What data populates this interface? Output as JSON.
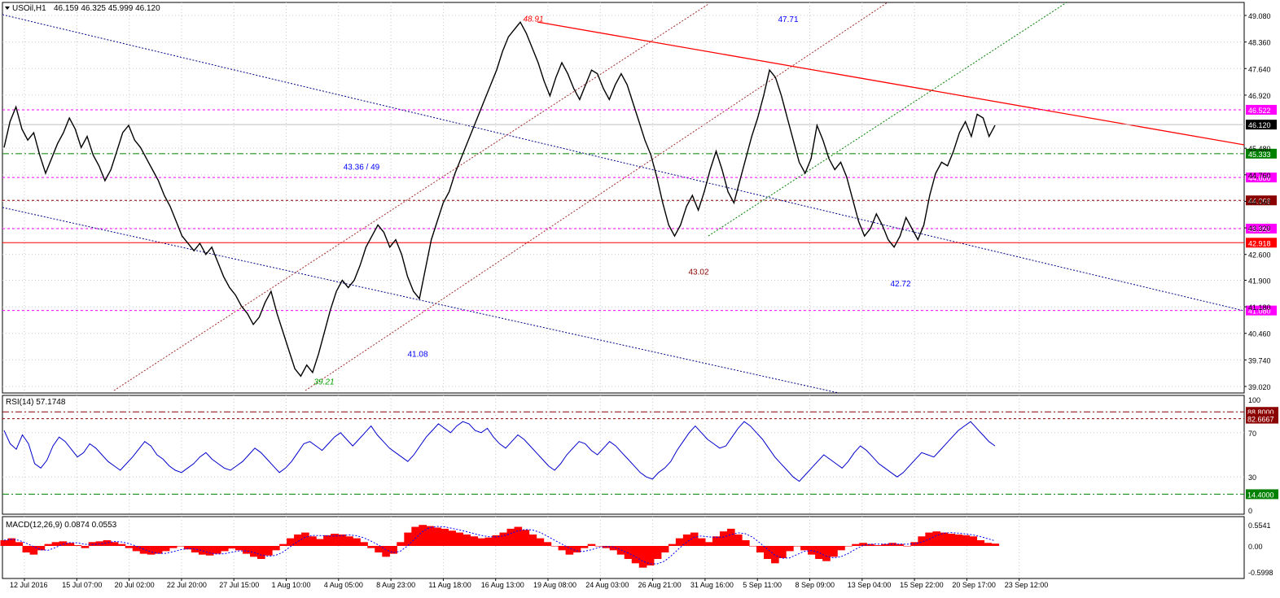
{
  "main_panel": {
    "header_symbol": "USOil,H1",
    "header_quote": "46.159 46.325 45.999 46.120",
    "price_ticks": [
      "49.080",
      "48.360",
      "47.640",
      "46.920",
      "45.480",
      "44.760",
      "44.040",
      "43.320",
      "42.600",
      "41.900",
      "41.180",
      "40.460",
      "39.740",
      "39.020"
    ],
    "hlines": [
      {
        "value": 46.522,
        "label": "46.522",
        "style": "dashed",
        "color": "#ff00ff",
        "tag_bg": "#ff00ff"
      },
      {
        "value": 46.12,
        "label": "46.120",
        "style": "solid",
        "color": "#c0c0c0",
        "tag_bg": "#000000"
      },
      {
        "value": 45.333,
        "label": "45.333",
        "style": "dashdot",
        "color": "#008000",
        "tag_bg": "#008000"
      },
      {
        "value": 44.686,
        "label": "44.686",
        "style": "dashed",
        "color": "#ff00ff",
        "tag_bg": "#ff00ff"
      },
      {
        "value": 44.066,
        "label": "44.066",
        "style": "dashed",
        "color": "#8b0000",
        "tag_bg": "#8b0000"
      },
      {
        "value": 43.3,
        "label": "43.300",
        "style": "dashed",
        "color": "#ff00ff",
        "tag_bg": "#ff00ff"
      },
      {
        "value": 42.918,
        "label": "42.918",
        "style": "solid",
        "color": "#ff0000",
        "tag_bg": "#ff0000"
      },
      {
        "value": 41.08,
        "label": "41.080",
        "style": "dashed",
        "color": "#ff00ff",
        "tag_bg": "#ff00ff"
      }
    ],
    "annotations": [
      {
        "text": "48.91",
        "color": "#ff0000",
        "italic": true,
        "ax": 655,
        "ay": 48.91
      },
      {
        "text": "47.71",
        "color": "#0000ff",
        "italic": false,
        "ax": 968,
        "ay": 48.9
      },
      {
        "text": "43.36 / 49",
        "color": "#0000ff",
        "italic": false,
        "ax": 444,
        "ay": 44.9
      },
      {
        "text": "43.02",
        "color": "#8b0000",
        "italic": false,
        "ax": 858,
        "ay": 42.05
      },
      {
        "text": "42.72",
        "color": "#0000ff",
        "italic": false,
        "ax": 1106,
        "ay": 41.73
      },
      {
        "text": "41.08",
        "color": "#0000ff",
        "italic": false,
        "ax": 513,
        "ay": 39.82
      },
      {
        "text": "39.21",
        "color": "#00a000",
        "italic": true,
        "ax": 398,
        "ay": 39.07
      }
    ],
    "price_series": [
      45.5,
      46.2,
      46.6,
      46.0,
      45.7,
      45.9,
      45.3,
      44.8,
      45.2,
      45.6,
      45.9,
      46.3,
      46.0,
      45.5,
      45.8,
      45.3,
      45.0,
      44.6,
      44.9,
      45.4,
      45.9,
      46.1,
      45.7,
      45.5,
      45.2,
      44.9,
      44.6,
      44.2,
      43.9,
      43.5,
      43.1,
      42.9,
      42.7,
      42.9,
      42.6,
      42.8,
      42.4,
      42.0,
      41.7,
      41.5,
      41.2,
      41.0,
      40.7,
      40.9,
      41.3,
      41.6,
      41.0,
      40.5,
      40.0,
      39.5,
      39.3,
      39.6,
      39.4,
      39.9,
      40.5,
      41.1,
      41.6,
      41.9,
      41.7,
      41.9,
      42.3,
      42.8,
      43.1,
      43.4,
      43.2,
      42.8,
      43.0,
      42.6,
      42.0,
      41.6,
      41.4,
      42.2,
      43.0,
      43.5,
      44.0,
      44.3,
      44.8,
      45.2,
      45.6,
      46.0,
      46.4,
      46.8,
      47.2,
      47.6,
      48.1,
      48.5,
      48.7,
      48.9,
      48.6,
      48.2,
      47.8,
      47.3,
      46.9,
      47.4,
      47.8,
      47.5,
      47.1,
      46.8,
      47.2,
      47.6,
      47.5,
      47.1,
      46.8,
      47.2,
      47.5,
      47.2,
      46.7,
      46.2,
      45.7,
      45.3,
      44.7,
      44.0,
      43.4,
      43.1,
      43.4,
      43.9,
      44.2,
      43.8,
      44.3,
      44.9,
      45.4,
      44.9,
      44.3,
      44.0,
      44.6,
      45.2,
      45.8,
      46.3,
      46.9,
      47.6,
      47.4,
      46.9,
      46.3,
      45.7,
      45.1,
      44.8,
      45.2,
      46.1,
      45.7,
      45.2,
      44.9,
      45.1,
      44.7,
      44.1,
      43.5,
      43.1,
      43.3,
      43.7,
      43.4,
      43.0,
      42.8,
      43.1,
      43.6,
      43.3,
      43.0,
      43.4,
      44.2,
      44.8,
      45.1,
      45.0,
      45.4,
      45.9,
      46.2,
      45.8,
      46.4,
      46.3,
      45.8,
      46.1
    ],
    "axis_price_range": [
      39.02,
      49.08
    ]
  },
  "rsi_panel": {
    "header": "RSI(14) 57.1748",
    "levels": [
      {
        "value": 88.8,
        "label": "88.8000",
        "color": "#8b0000",
        "tag_bg": "#8b0000",
        "style": "dashdot"
      },
      {
        "value": 82.6667,
        "label": "82.6667",
        "color": "#8b0000",
        "tag_bg": "#8b0000",
        "style": "dashed"
      },
      {
        "value": 14.4,
        "label": "14.4000",
        "color": "#008000",
        "tag_bg": "#008000",
        "style": "dashdot"
      }
    ],
    "ticks": [
      "100",
      "70",
      "30",
      "0"
    ],
    "series": [
      72,
      60,
      55,
      68,
      60,
      42,
      38,
      45,
      58,
      66,
      62,
      55,
      48,
      52,
      60,
      56,
      50,
      44,
      40,
      36,
      42,
      48,
      55,
      62,
      58,
      50,
      46,
      40,
      36,
      34,
      38,
      42,
      48,
      52,
      46,
      42,
      38,
      36,
      40,
      44,
      50,
      56,
      52,
      46,
      40,
      34,
      38,
      44,
      52,
      60,
      62,
      58,
      54,
      60,
      66,
      70,
      64,
      58,
      64,
      70,
      76,
      68,
      62,
      56,
      52,
      48,
      44,
      50,
      58,
      66,
      72,
      78,
      74,
      70,
      76,
      80,
      78,
      72,
      70,
      74,
      66,
      60,
      56,
      62,
      68,
      64,
      58,
      52,
      46,
      40,
      36,
      42,
      50,
      56,
      62,
      60,
      54,
      50,
      56,
      62,
      58,
      52,
      46,
      40,
      34,
      30,
      28,
      34,
      38,
      44,
      54,
      62,
      70,
      76,
      70,
      64,
      60,
      56,
      58,
      66,
      74,
      80,
      76,
      70,
      64,
      56,
      48,
      42,
      36,
      30,
      26,
      32,
      38,
      44,
      50,
      46,
      42,
      38,
      44,
      52,
      58,
      54,
      48,
      42,
      38,
      34,
      30,
      34,
      40,
      46,
      52,
      50,
      48,
      54,
      60,
      66,
      72,
      76,
      80,
      74,
      68,
      62,
      58
    ],
    "range": [
      0,
      100
    ]
  },
  "macd_panel": {
    "header": "MACD(12,26,9) 0.0874 0.0553",
    "ticks": [
      "0.5541",
      "0.00",
      "-0.5998"
    ],
    "histogram": [
      0.15,
      0.2,
      0.1,
      -0.15,
      -0.2,
      -0.1,
      0.05,
      0.1,
      0.12,
      0.08,
      0.02,
      -0.05,
      0.1,
      0.12,
      0.15,
      0.1,
      0.05,
      -0.05,
      -0.12,
      -0.18,
      -0.2,
      -0.18,
      -0.12,
      -0.05,
      0.0,
      -0.08,
      -0.15,
      -0.2,
      -0.22,
      -0.18,
      -0.12,
      -0.06,
      -0.1,
      -0.18,
      -0.25,
      -0.3,
      -0.22,
      -0.1,
      0.05,
      0.2,
      0.3,
      0.35,
      0.25,
      0.18,
      0.28,
      0.32,
      0.3,
      0.25,
      0.2,
      0.1,
      -0.05,
      -0.15,
      -0.25,
      -0.18,
      0.1,
      0.35,
      0.5,
      0.55,
      0.52,
      0.48,
      0.45,
      0.4,
      0.35,
      0.3,
      0.25,
      0.2,
      0.22,
      0.28,
      0.35,
      0.45,
      0.5,
      0.42,
      0.3,
      0.2,
      0.1,
      0.0,
      -0.1,
      -0.2,
      -0.15,
      -0.05,
      0.05,
      0.0,
      -0.05,
      -0.1,
      -0.2,
      -0.3,
      -0.4,
      -0.5,
      -0.45,
      -0.3,
      -0.15,
      0.05,
      0.2,
      0.3,
      0.35,
      0.2,
      0.1,
      0.25,
      0.38,
      0.45,
      0.3,
      0.15,
      0.0,
      -0.15,
      -0.3,
      -0.4,
      -0.28,
      -0.12,
      0.0,
      -0.1,
      -0.2,
      -0.3,
      -0.35,
      -0.25,
      -0.1,
      0.0,
      0.05,
      0.08,
      0.05,
      0.02,
      0.05,
      0.08,
      0.05,
      0.0,
      0.1,
      0.25,
      0.35,
      0.38,
      0.35,
      0.32,
      0.3,
      0.28,
      0.25,
      0.15,
      0.08,
      0.06
    ],
    "range": [
      -0.5998,
      0.5541
    ]
  },
  "time_axis": {
    "labels": [
      "12 Jul 2016",
      "15 Jul 07:00",
      "20 Jul 02:00",
      "22 Jul 20:00",
      "27 Jul 15:00",
      "1 Aug 10:00",
      "4 Aug 05:00",
      "8 Aug 23:00",
      "11 Aug 18:00",
      "16 Aug 13:00",
      "19 Aug 08:00",
      "24 Aug 03:00",
      "26 Aug 21:00",
      "31 Aug 16:00",
      "5 Sep 11:00",
      "8 Sep 09:00",
      "13 Sep 04:00",
      "15 Sep 22:00",
      "20 Sep 17:00",
      "23 Sep 12:00"
    ]
  },
  "colors": {
    "grid": "#c8c8c8",
    "price": "#000000",
    "rsi": "#0000cd",
    "macd_hist": "#ff0000",
    "macd_signal": "#0000ff",
    "trend_red": "#ff0000",
    "channel_blue": "#00008b",
    "channel_brown": "#a52a2a",
    "channel_green": "#008000"
  },
  "chart_data": {
    "type": "line",
    "title": "USOil,H1",
    "xlabel": "",
    "ylabel": "",
    "ylim": [
      39.02,
      49.08
    ],
    "series": [
      {
        "name": "USOil,H1",
        "values": "see main_panel.price_series"
      }
    ],
    "indicators": [
      "RSI(14) 57.1748",
      "MACD(12,26,9) 0.0874 0.0553"
    ]
  }
}
